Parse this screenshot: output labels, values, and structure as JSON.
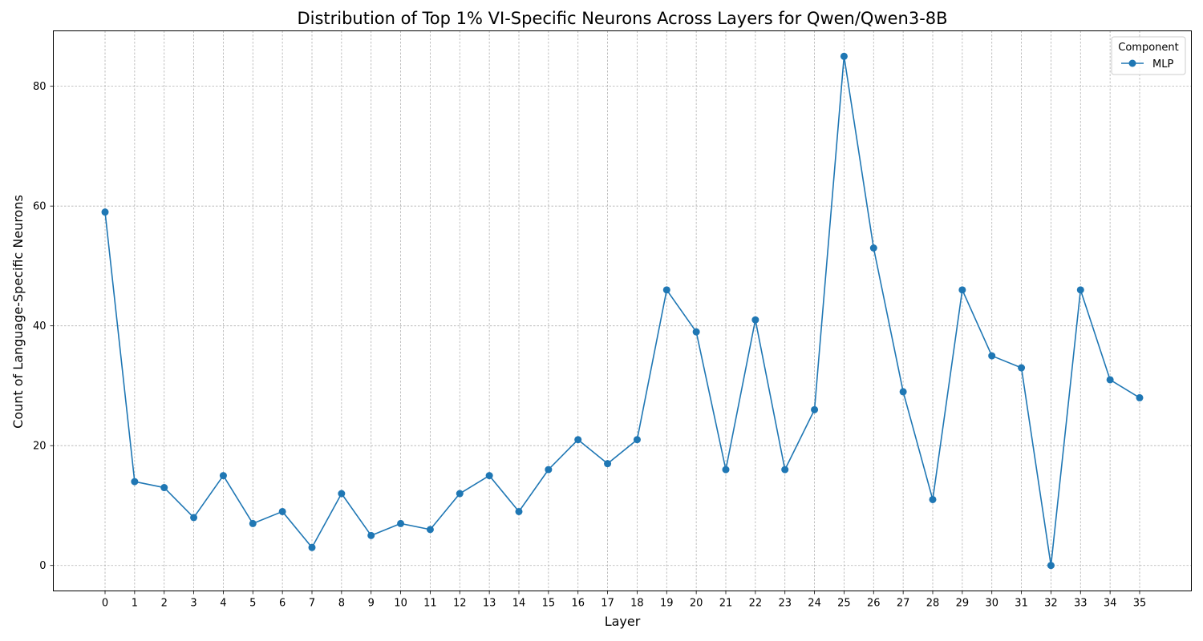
{
  "chart_data": {
    "type": "line",
    "title": "Distribution of Top 1% VI-Specific Neurons Across Layers for Qwen/Qwen3-8B",
    "xlabel": "Layer",
    "ylabel": "Count of Language-Specific Neurons",
    "x": [
      0,
      1,
      2,
      3,
      4,
      5,
      6,
      7,
      8,
      9,
      10,
      11,
      12,
      13,
      14,
      15,
      16,
      17,
      18,
      19,
      20,
      21,
      22,
      23,
      24,
      25,
      26,
      27,
      28,
      29,
      30,
      31,
      32,
      33,
      34,
      35
    ],
    "series": [
      {
        "name": "MLP",
        "color": "#1f77b4",
        "marker": "circle",
        "values": [
          59,
          14,
          13,
          8,
          15,
          7,
          9,
          3,
          12,
          5,
          7,
          6,
          12,
          15,
          9,
          16,
          21,
          17,
          21,
          46,
          39,
          16,
          41,
          16,
          26,
          85,
          53,
          29,
          11,
          46,
          35,
          33,
          0,
          46,
          31,
          28
        ]
      }
    ],
    "xlim": [
      -1.75,
      36.75
    ],
    "ylim": [
      -4.25,
      89.25
    ],
    "yticks": [
      0,
      20,
      40,
      60,
      80
    ],
    "grid": true,
    "legend": {
      "title": "Component",
      "position": "top-right"
    }
  }
}
